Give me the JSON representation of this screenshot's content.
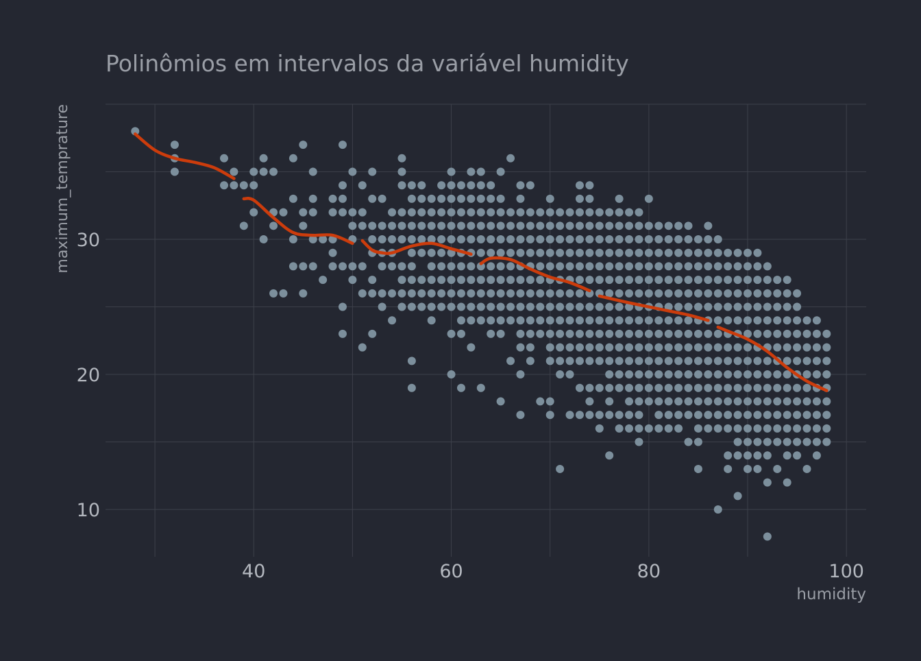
{
  "colors": {
    "background": "#242731",
    "grid": "#3d404a",
    "point": "#7c8f9c",
    "line": "#cc3c0c",
    "text": "#9a9ea6",
    "tick": "#b4b8bf"
  },
  "chart_data": {
    "type": "scatter",
    "title": "Polinômios em intervalos da variável humidity",
    "xlabel": "humidity",
    "ylabel": "maximum_temprature",
    "xlim": [
      25,
      102
    ],
    "ylim": [
      6.5,
      40
    ],
    "xticks": [
      40,
      60,
      80,
      100
    ],
    "yticks": [
      10,
      20,
      30
    ],
    "grid": true,
    "legend": "none",
    "scatter_columns": [
      {
        "x": 28,
        "y": [
          38
        ]
      },
      {
        "x": 32,
        "y": [
          37,
          36,
          35
        ]
      },
      {
        "x": 37,
        "y": [
          36,
          34
        ]
      },
      {
        "x": 38,
        "y": [
          35,
          34
        ]
      },
      {
        "x": 39,
        "y": [
          34,
          31
        ]
      },
      {
        "x": 40,
        "y": [
          35,
          34,
          32
        ]
      },
      {
        "x": 41,
        "y": [
          36,
          35,
          30
        ]
      },
      {
        "x": 42,
        "y": [
          35,
          32,
          31,
          26
        ]
      },
      {
        "x": 43,
        "y": [
          32,
          26
        ]
      },
      {
        "x": 44,
        "y": [
          36,
          33,
          30,
          28
        ]
      },
      {
        "x": 45,
        "y": [
          37,
          32,
          31,
          28,
          26
        ]
      },
      {
        "x": 46,
        "y": [
          35,
          33,
          32,
          30,
          28
        ]
      },
      {
        "x": 47,
        "y": [
          30,
          27
        ]
      },
      {
        "x": 48,
        "y": [
          33,
          32,
          30,
          29,
          28
        ]
      },
      {
        "x": 49,
        "y": [
          37,
          34,
          33,
          32,
          28,
          25,
          23
        ]
      },
      {
        "x": 50,
        "y": [
          35,
          32,
          31,
          30,
          28,
          27
        ]
      },
      {
        "x": 51,
        "y": [
          34,
          32,
          31,
          28,
          26,
          22
        ]
      },
      {
        "x": 52,
        "y": [
          35,
          33,
          31,
          30,
          29,
          27,
          26,
          23
        ]
      },
      {
        "x": 53,
        "y": [
          33,
          31,
          30,
          29,
          28,
          26,
          25
        ]
      },
      {
        "x": 54,
        "y": [
          32,
          31,
          30,
          29,
          28,
          26,
          24
        ]
      },
      {
        "x": 55,
        "y": [
          36,
          35,
          34,
          32,
          31,
          30,
          28,
          27,
          26,
          25
        ]
      },
      {
        "x": 56,
        "y": [
          34,
          33,
          32,
          31,
          30,
          29,
          28,
          27,
          26,
          25,
          21,
          19
        ]
      },
      {
        "x": 57,
        "y": [
          34,
          33,
          32,
          31,
          30,
          29,
          27,
          26,
          25
        ]
      },
      {
        "x": 58,
        "y": [
          33,
          32,
          31,
          30,
          29,
          28,
          27,
          26,
          25,
          24
        ]
      },
      {
        "x": 59,
        "y": [
          34,
          33,
          32,
          31,
          30,
          29,
          28,
          27,
          26,
          25
        ]
      },
      {
        "x": 60,
        "y": [
          35,
          34,
          33,
          32,
          31,
          30,
          29,
          28,
          27,
          26,
          25,
          23,
          20
        ]
      },
      {
        "x": 61,
        "y": [
          34,
          33,
          32,
          31,
          30,
          29,
          28,
          27,
          26,
          25,
          24,
          23,
          19
        ]
      },
      {
        "x": 62,
        "y": [
          35,
          34,
          33,
          32,
          31,
          30,
          29,
          28,
          27,
          26,
          25,
          24,
          22
        ]
      },
      {
        "x": 63,
        "y": [
          35,
          34,
          33,
          32,
          31,
          30,
          29,
          28,
          27,
          26,
          25,
          24,
          19
        ]
      },
      {
        "x": 64,
        "y": [
          34,
          33,
          32,
          31,
          30,
          29,
          28,
          27,
          26,
          25,
          24,
          23
        ]
      },
      {
        "x": 65,
        "y": [
          35,
          33,
          32,
          31,
          30,
          29,
          28,
          27,
          26,
          25,
          24,
          23,
          18
        ]
      },
      {
        "x": 66,
        "y": [
          36,
          32,
          31,
          30,
          29,
          28,
          27,
          26,
          25,
          24,
          21
        ]
      },
      {
        "x": 67,
        "y": [
          34,
          33,
          32,
          31,
          30,
          29,
          28,
          27,
          26,
          25,
          24,
          23,
          22,
          20,
          17
        ]
      },
      {
        "x": 68,
        "y": [
          34,
          32,
          31,
          30,
          29,
          28,
          27,
          26,
          25,
          24,
          23,
          22,
          21
        ]
      },
      {
        "x": 69,
        "y": [
          32,
          31,
          30,
          29,
          28,
          27,
          26,
          25,
          24,
          23,
          18
        ]
      },
      {
        "x": 70,
        "y": [
          33,
          32,
          31,
          30,
          29,
          28,
          27,
          26,
          25,
          24,
          23,
          22,
          21,
          18,
          17
        ]
      },
      {
        "x": 71,
        "y": [
          32,
          31,
          30,
          29,
          28,
          27,
          26,
          25,
          24,
          23,
          22,
          21,
          20,
          13
        ]
      },
      {
        "x": 72,
        "y": [
          32,
          31,
          30,
          29,
          28,
          27,
          26,
          25,
          24,
          23,
          22,
          21,
          20,
          17
        ]
      },
      {
        "x": 73,
        "y": [
          34,
          33,
          32,
          31,
          30,
          29,
          28,
          27,
          26,
          25,
          24,
          23,
          22,
          21,
          19,
          17
        ]
      },
      {
        "x": 74,
        "y": [
          34,
          33,
          32,
          31,
          30,
          29,
          28,
          27,
          26,
          25,
          24,
          23,
          22,
          21,
          19,
          18,
          17
        ]
      },
      {
        "x": 75,
        "y": [
          32,
          31,
          30,
          29,
          28,
          27,
          26,
          25,
          24,
          23,
          22,
          21,
          19,
          17,
          16
        ]
      },
      {
        "x": 76,
        "y": [
          32,
          31,
          30,
          29,
          28,
          27,
          26,
          25,
          24,
          23,
          22,
          21,
          20,
          19,
          18,
          17,
          14
        ]
      },
      {
        "x": 77,
        "y": [
          33,
          32,
          31,
          30,
          29,
          28,
          27,
          26,
          25,
          24,
          23,
          22,
          21,
          20,
          19,
          17,
          16
        ]
      },
      {
        "x": 78,
        "y": [
          32,
          31,
          30,
          29,
          28,
          27,
          26,
          25,
          24,
          23,
          22,
          21,
          20,
          19,
          18,
          17,
          16
        ]
      },
      {
        "x": 79,
        "y": [
          32,
          31,
          30,
          29,
          28,
          27,
          26,
          25,
          24,
          23,
          22,
          21,
          20,
          19,
          18,
          17,
          16,
          15
        ]
      },
      {
        "x": 80,
        "y": [
          33,
          31,
          30,
          29,
          28,
          27,
          26,
          25,
          24,
          23,
          22,
          21,
          20,
          19,
          18,
          16
        ]
      },
      {
        "x": 81,
        "y": [
          31,
          30,
          29,
          28,
          27,
          26,
          25,
          24,
          23,
          22,
          21,
          20,
          19,
          18,
          17,
          16
        ]
      },
      {
        "x": 82,
        "y": [
          31,
          30,
          29,
          28,
          27,
          26,
          25,
          24,
          23,
          22,
          21,
          20,
          19,
          18,
          17,
          16
        ]
      },
      {
        "x": 83,
        "y": [
          31,
          30,
          29,
          28,
          27,
          26,
          25,
          24,
          23,
          22,
          21,
          20,
          19,
          18,
          17,
          16
        ]
      },
      {
        "x": 84,
        "y": [
          31,
          30,
          29,
          28,
          27,
          26,
          25,
          24,
          23,
          22,
          21,
          20,
          19,
          18,
          17,
          15
        ]
      },
      {
        "x": 85,
        "y": [
          30,
          29,
          28,
          27,
          26,
          25,
          24,
          23,
          22,
          21,
          20,
          19,
          18,
          17,
          16,
          15,
          13
        ]
      },
      {
        "x": 86,
        "y": [
          31,
          30,
          29,
          28,
          27,
          26,
          25,
          24,
          23,
          22,
          21,
          20,
          19,
          18,
          17,
          16
        ]
      },
      {
        "x": 87,
        "y": [
          30,
          29,
          28,
          27,
          26,
          25,
          24,
          23,
          22,
          21,
          20,
          19,
          18,
          17,
          16,
          10
        ]
      },
      {
        "x": 88,
        "y": [
          29,
          28,
          27,
          26,
          25,
          24,
          23,
          22,
          21,
          20,
          19,
          18,
          17,
          16,
          14,
          13
        ]
      },
      {
        "x": 89,
        "y": [
          29,
          28,
          27,
          26,
          25,
          24,
          23,
          22,
          21,
          20,
          19,
          18,
          17,
          16,
          15,
          14,
          11
        ]
      },
      {
        "x": 90,
        "y": [
          29,
          28,
          27,
          26,
          25,
          24,
          23,
          22,
          21,
          20,
          19,
          18,
          17,
          16,
          15,
          14,
          13
        ]
      },
      {
        "x": 91,
        "y": [
          29,
          28,
          27,
          26,
          25,
          24,
          23,
          22,
          21,
          20,
          19,
          18,
          17,
          16,
          15,
          14,
          13
        ]
      },
      {
        "x": 92,
        "y": [
          28,
          27,
          26,
          25,
          24,
          23,
          22,
          21,
          20,
          19,
          18,
          17,
          16,
          15,
          14,
          12,
          8
        ]
      },
      {
        "x": 93,
        "y": [
          27,
          26,
          25,
          24,
          23,
          22,
          21,
          20,
          19,
          18,
          17,
          16,
          15,
          13
        ]
      },
      {
        "x": 94,
        "y": [
          27,
          26,
          25,
          24,
          23,
          22,
          21,
          20,
          19,
          18,
          17,
          16,
          15,
          14,
          12
        ]
      },
      {
        "x": 95,
        "y": [
          26,
          25,
          24,
          23,
          22,
          21,
          20,
          19,
          18,
          17,
          16,
          15,
          14
        ]
      },
      {
        "x": 96,
        "y": [
          24,
          23,
          22,
          21,
          20,
          19,
          18,
          17,
          16,
          15,
          13
        ]
      },
      {
        "x": 97,
        "y": [
          24,
          23,
          22,
          21,
          20,
          19,
          18,
          17,
          16,
          15,
          14
        ]
      },
      {
        "x": 98,
        "y": [
          23,
          22,
          21,
          20,
          19,
          18,
          17,
          16,
          15
        ]
      }
    ],
    "fit_segments": [
      {
        "x": [
          28,
          30,
          32,
          34,
          36,
          38
        ],
        "y": [
          37.8,
          36.6,
          36.0,
          35.7,
          35.3,
          34.5
        ]
      },
      {
        "x": [
          39,
          40,
          42,
          44,
          46,
          48,
          50
        ],
        "y": [
          33.0,
          32.9,
          31.6,
          30.5,
          30.3,
          30.3,
          29.7
        ]
      },
      {
        "x": [
          51,
          52,
          53,
          54,
          56,
          58,
          60,
          62
        ],
        "y": [
          29.9,
          29.2,
          29.0,
          29.0,
          29.5,
          29.7,
          29.3,
          28.9
        ]
      },
      {
        "x": [
          63,
          64,
          66,
          68,
          70,
          72,
          74
        ],
        "y": [
          28.2,
          28.6,
          28.5,
          27.8,
          27.2,
          26.8,
          26.2
        ]
      },
      {
        "x": [
          75,
          78,
          80,
          82,
          84,
          86
        ],
        "y": [
          25.8,
          25.3,
          25.0,
          24.7,
          24.4,
          24.0
        ]
      },
      {
        "x": [
          87,
          88,
          90,
          92,
          94,
          96,
          98
        ],
        "y": [
          23.5,
          23.2,
          22.6,
          21.7,
          20.5,
          19.5,
          18.8
        ]
      }
    ]
  }
}
